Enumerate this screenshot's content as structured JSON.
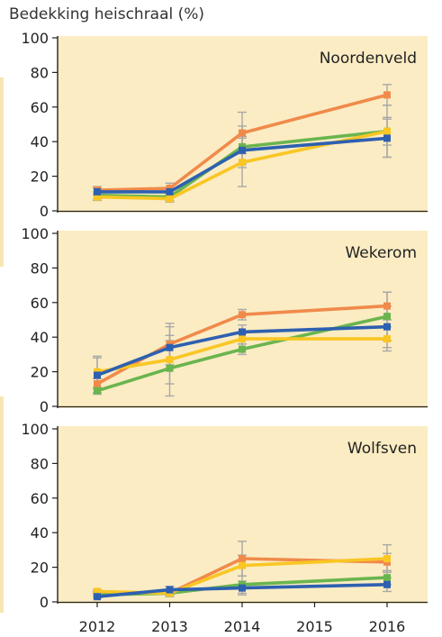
{
  "figure": {
    "ylabel": "Bedekking heischraal (%)",
    "colors": {
      "panel_bg": "#fbecc3",
      "axis": "#222222",
      "text": "#222222",
      "error_bar": "#a9a9a9"
    }
  },
  "chart_data": [
    {
      "type": "line",
      "title": "Noordenveld",
      "x": [
        2012,
        2013,
        2014,
        2016
      ],
      "xlim": [
        2012,
        2016
      ],
      "ylim": [
        0,
        100
      ],
      "yticks": [
        0,
        20,
        40,
        60,
        80,
        100
      ],
      "grid": false,
      "series": [
        {
          "color": "#f08a4b",
          "values": [
            12,
            13,
            45,
            67
          ],
          "error": [
            2,
            3,
            12,
            6
          ]
        },
        {
          "color": "#6ab54e",
          "values": [
            9,
            8,
            37,
            46
          ],
          "error": [
            2,
            2,
            12,
            8
          ]
        },
        {
          "color": "#f9c623",
          "values": [
            8,
            7,
            28,
            46
          ],
          "error": [
            2,
            2,
            14,
            15
          ]
        },
        {
          "color": "#2e60b0",
          "values": [
            11,
            11,
            35,
            42
          ],
          "error": [
            2,
            2,
            8,
            11
          ]
        }
      ]
    },
    {
      "type": "line",
      "title": "Wekerom",
      "x": [
        2012,
        2013,
        2014,
        2016
      ],
      "xlim": [
        2012,
        2016
      ],
      "ylim": [
        0,
        100
      ],
      "yticks": [
        0,
        20,
        40,
        60,
        80,
        100
      ],
      "grid": false,
      "series": [
        {
          "color": "#f08a4b",
          "values": [
            13,
            36,
            53,
            58
          ],
          "error": [
            3,
            12,
            3,
            8
          ]
        },
        {
          "color": "#6ab54e",
          "values": [
            9,
            22,
            33,
            52
          ],
          "error": [
            2,
            16,
            3,
            14
          ]
        },
        {
          "color": "#f9c623",
          "values": [
            20,
            27,
            39,
            39
          ],
          "error": [
            9,
            14,
            3,
            7
          ]
        },
        {
          "color": "#2e60b0",
          "values": [
            18,
            34,
            43,
            46
          ],
          "error": [
            10,
            12,
            4,
            12
          ]
        }
      ]
    },
    {
      "type": "line",
      "title": "Wolfsven",
      "x": [
        2012,
        2013,
        2014,
        2016
      ],
      "xlim": [
        2012,
        2016
      ],
      "ylim": [
        0,
        100
      ],
      "yticks": [
        0,
        20,
        40,
        60,
        80,
        100
      ],
      "xticks": [
        2012,
        2013,
        2014,
        2015,
        2016
      ],
      "grid": false,
      "series": [
        {
          "color": "#f08a4b",
          "values": [
            5,
            5,
            25,
            23
          ],
          "error": [
            1,
            2,
            10,
            5
          ]
        },
        {
          "color": "#6ab54e",
          "values": [
            4,
            5,
            10,
            14
          ],
          "error": [
            1,
            1,
            5,
            4
          ]
        },
        {
          "color": "#f9c623",
          "values": [
            6,
            5,
            21,
            25
          ],
          "error": [
            1,
            2,
            6,
            8
          ]
        },
        {
          "color": "#2e60b0",
          "values": [
            3,
            7,
            8,
            10
          ],
          "error": [
            1,
            2,
            4,
            4
          ]
        }
      ]
    }
  ]
}
